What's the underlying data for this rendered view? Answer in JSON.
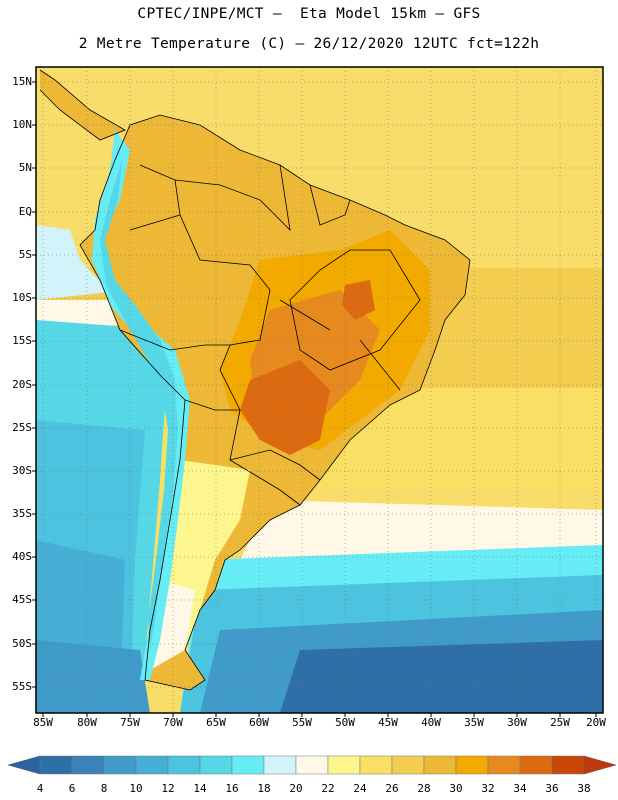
{
  "header": {
    "title_line1": "CPTEC/INPE/MCT —  Eta Model 15km — GFS",
    "title_line2": "2 Metre Temperature (C) — 26/12/2020 12UTC fct=122h"
  },
  "map": {
    "latitude_labels": [
      "15N",
      "10N",
      "5N",
      "EQ",
      "5S",
      "10S",
      "15S",
      "20S",
      "25S",
      "30S",
      "35S",
      "40S",
      "45S",
      "50S",
      "55S"
    ],
    "longitude_labels": [
      "85W",
      "80W",
      "75W",
      "70W",
      "65W",
      "60W",
      "55W",
      "50W",
      "45W",
      "40W",
      "35W",
      "30W",
      "25W",
      "20W"
    ]
  },
  "legend": {
    "variable": "2 Metre Temperature (C)",
    "ticks": [
      "4",
      "6",
      "8",
      "10",
      "12",
      "14",
      "16",
      "18",
      "20",
      "22",
      "24",
      "26",
      "28",
      "30",
      "32",
      "34",
      "36",
      "38"
    ],
    "colors": [
      "#2f6fa8",
      "#3a82b9",
      "#409bc8",
      "#46afd6",
      "#4cc4df",
      "#55d7e6",
      "#66ecf5",
      "#d3f3fb",
      "#fff8e6",
      "#fdf68f",
      "#f9e064",
      "#f3cd50",
      "#ecb835",
      "#f2a900",
      "#e68a1f",
      "#dc6a10",
      "#c84608"
    ],
    "under_color": "#2a64a2",
    "over_color": "#bf3a0a"
  }
}
